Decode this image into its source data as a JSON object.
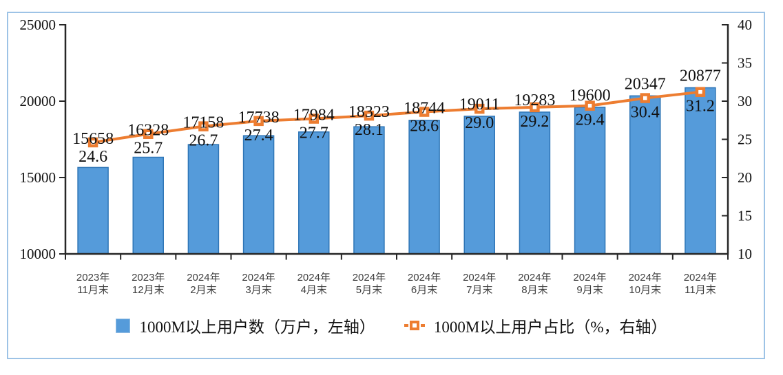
{
  "frame": {
    "border_color": "#9DC3E6"
  },
  "chart_data": {
    "type": "bar",
    "subtype": "bar+line dual axis",
    "title": "",
    "grid": false,
    "legend_position": "bottom",
    "categories": [
      [
        "2023年",
        "11月末"
      ],
      [
        "2023年",
        "12月末"
      ],
      [
        "2024年",
        "2月末"
      ],
      [
        "2024年",
        "3月末"
      ],
      [
        "2024年",
        "4月末"
      ],
      [
        "2024年",
        "5月末"
      ],
      [
        "2024年",
        "6月末"
      ],
      [
        "2024年",
        "7月末"
      ],
      [
        "2024年",
        "8月末"
      ],
      [
        "2024年",
        "9月末"
      ],
      [
        "2024年",
        "10月末"
      ],
      [
        "2024年",
        "11月末"
      ]
    ],
    "series": [
      {
        "name": "1000M以上用户数（万户，左轴）",
        "type": "bar",
        "axis": "left",
        "values": [
          15658,
          16328,
          17158,
          17738,
          17984,
          18323,
          18744,
          19011,
          19283,
          19600,
          20347,
          20877
        ],
        "fill": "#559BDA",
        "border": "#2E75B6"
      },
      {
        "name": "1000M以上用户占比（%，右轴）",
        "type": "line",
        "axis": "right",
        "values": [
          24.6,
          25.7,
          26.7,
          27.4,
          27.7,
          28.1,
          28.6,
          29.0,
          29.2,
          29.4,
          30.4,
          31.2
        ],
        "decimals": 1,
        "color": "#ED7D31",
        "marker": "square-white-core"
      }
    ],
    "left_axis": {
      "min": 10000,
      "max": 25000,
      "ticks": [
        25000,
        20000,
        15000,
        10000
      ]
    },
    "right_axis": {
      "min": 10,
      "max": 40,
      "ticks": [
        40,
        35,
        30,
        25,
        20,
        15,
        10
      ]
    },
    "axis_color": "#262626",
    "label_color": "#111111",
    "xlabel_color": "#3F3F3F"
  }
}
